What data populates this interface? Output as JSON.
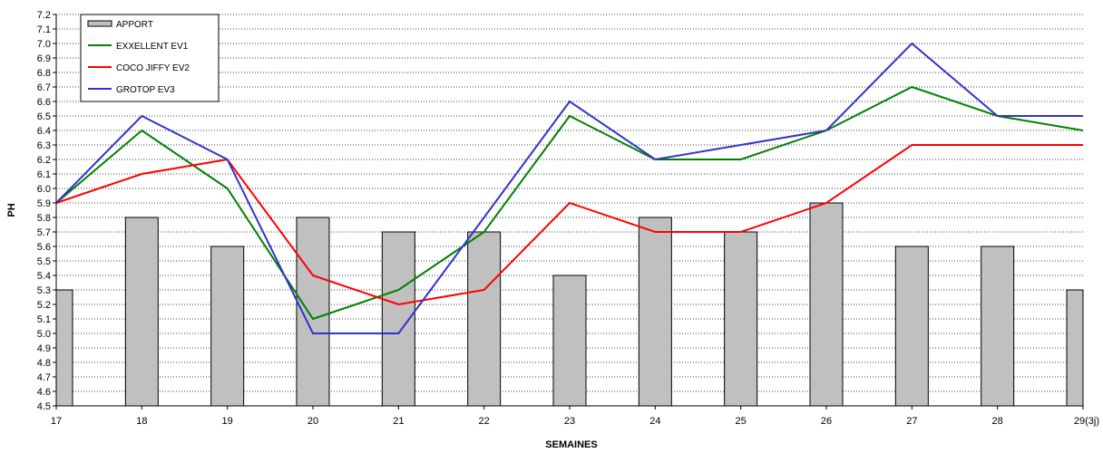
{
  "chart_data": {
    "type": "bar",
    "categories": [
      "17",
      "18",
      "19",
      "20",
      "21",
      "22",
      "23",
      "24",
      "25",
      "26",
      "27",
      "28",
      "29(3j)"
    ],
    "xlabel": "SEMAINES",
    "ylabel": "PH",
    "ylim": [
      4.5,
      7.2
    ],
    "ytick_step": 0.1,
    "grid": "horizontal dotted",
    "legend_position": "top-left",
    "series": [
      {
        "name": "APPORT",
        "kind": "bar",
        "color": "#c0c0c0",
        "values": [
          5.3,
          5.8,
          5.6,
          5.8,
          5.7,
          5.7,
          5.4,
          5.8,
          5.7,
          5.9,
          5.6,
          5.6,
          5.3
        ]
      },
      {
        "name": "EXXELLENT EV1",
        "kind": "line",
        "color": "#008000",
        "values": [
          5.9,
          6.4,
          6.0,
          5.1,
          5.3,
          5.7,
          6.5,
          6.2,
          6.2,
          6.4,
          6.7,
          6.5,
          6.4
        ]
      },
      {
        "name": "COCO JIFFY EV2",
        "kind": "line",
        "color": "#ff0000",
        "values": [
          5.9,
          6.1,
          6.2,
          5.4,
          5.2,
          5.3,
          5.9,
          5.7,
          5.7,
          5.9,
          6.3,
          6.3,
          6.3
        ]
      },
      {
        "name": "GROTOP EV3",
        "kind": "line",
        "color": "#3333cc",
        "values": [
          5.9,
          6.5,
          6.2,
          5.0,
          5.0,
          5.8,
          6.6,
          6.2,
          6.3,
          6.4,
          7.0,
          6.5,
          6.5
        ]
      }
    ]
  }
}
